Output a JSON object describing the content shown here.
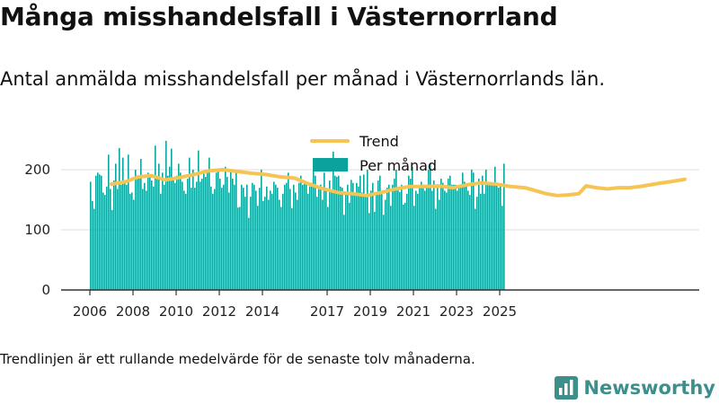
{
  "title": "Många misshandelsfall i Västernorrland",
  "subtitle": "Antal anmälda misshandelsfall per månad i Västernorrlands län.",
  "note": "Trendlinjen är ett rullande medelvärde för de senaste tolv månaderna.",
  "brand": "Newsworthy",
  "colors": {
    "bars": "#0aa29a",
    "trend": "#f5c452",
    "axis": "#333333",
    "grid": "#dddddd",
    "brand": "#3e8f8c"
  },
  "icons": {
    "brand_logo": "bar-chart-logo-icon"
  },
  "chart_data": {
    "type": "bar",
    "x_start": "2006-01",
    "y_ticks": [
      0,
      100,
      200
    ],
    "x_tick_labels": [
      "2006",
      "2008",
      "2010",
      "2012",
      "2014",
      "2017",
      "2019",
      "2021",
      "2023",
      "2025"
    ],
    "ylim": [
      0,
      250
    ],
    "grid": true,
    "legend": {
      "position": "top-center",
      "entries": [
        "Trend",
        "Per månad"
      ]
    },
    "series": [
      {
        "name": "Per månad",
        "type": "bar",
        "values": [
          180,
          148,
          135,
          190,
          195,
          192,
          190,
          162,
          158,
          172,
          225,
          168,
          133,
          182,
          210,
          168,
          236,
          175,
          220,
          182,
          175,
          225,
          160,
          162,
          150,
          200,
          185,
          190,
          218,
          168,
          178,
          165,
          195,
          188,
          182,
          172,
          240,
          190,
          210,
          160,
          195,
          175,
          248,
          190,
          205,
          235,
          185,
          178,
          190,
          210,
          195,
          180,
          165,
          160,
          185,
          220,
          170,
          200,
          170,
          180,
          232,
          180,
          185,
          195,
          188,
          200,
          220,
          172,
          160,
          168,
          195,
          202,
          185,
          170,
          175,
          205,
          188,
          162,
          200,
          185,
          175,
          195,
          137,
          138,
          175,
          170,
          155,
          175,
          120,
          155,
          178,
          175,
          165,
          140,
          170,
          200,
          148,
          155,
          172,
          150,
          165,
          160,
          180,
          175,
          170,
          150,
          138,
          160,
          175,
          178,
          195,
          168,
          136,
          175,
          162,
          150,
          178,
          190,
          175,
          178,
          175,
          160,
          172,
          178,
          200,
          190,
          155,
          170,
          175,
          150,
          195,
          170,
          138,
          182,
          165,
          230,
          190,
          188,
          190,
          172,
          170,
          125,
          160,
          175,
          145,
          183,
          178,
          162,
          178,
          172,
          190,
          162,
          192,
          155,
          200,
          128,
          165,
          178,
          130,
          160,
          182,
          190,
          160,
          125,
          150,
          170,
          175,
          140,
          175,
          185,
          200,
          170,
          163,
          175,
          142,
          145,
          160,
          190,
          185,
          205,
          140,
          165,
          160,
          170,
          180,
          175,
          165,
          175,
          200,
          210,
          165,
          182,
          135,
          170,
          150,
          185,
          178,
          165,
          162,
          185,
          190,
          175,
          175,
          175,
          165,
          170,
          172,
          195,
          180,
          175,
          165,
          158,
          200,
          195,
          135,
          155,
          185,
          160,
          190,
          160,
          200,
          175,
          175,
          175,
          175,
          205,
          175,
          170,
          175,
          140,
          210
        ]
      },
      {
        "name": "Trend",
        "type": "line",
        "points": [
          [
            12,
            176
          ],
          [
            20,
            180
          ],
          [
            27,
            188
          ],
          [
            34,
            190
          ],
          [
            42,
            183
          ],
          [
            50,
            187
          ],
          [
            58,
            192
          ],
          [
            66,
            198
          ],
          [
            74,
            200
          ],
          [
            82,
            197
          ],
          [
            90,
            194
          ],
          [
            98,
            192
          ],
          [
            106,
            188
          ],
          [
            114,
            186
          ],
          [
            122,
            176
          ],
          [
            130,
            168
          ],
          [
            138,
            162
          ],
          [
            146,
            160
          ],
          [
            154,
            157
          ],
          [
            162,
            162
          ],
          [
            170,
            168
          ],
          [
            178,
            172
          ],
          [
            186,
            172
          ],
          [
            194,
            173
          ],
          [
            202,
            170
          ],
          [
            210,
            175
          ],
          [
            218,
            178
          ],
          [
            226,
            176
          ],
          [
            234,
            172
          ],
          [
            242,
            170
          ],
          [
            248,
            165
          ],
          [
            254,
            160
          ],
          [
            260,
            157
          ],
          [
            266,
            158
          ],
          [
            272,
            160
          ],
          [
            276,
            173
          ],
          [
            282,
            170
          ],
          [
            288,
            168
          ],
          [
            294,
            170
          ],
          [
            300,
            170
          ],
          [
            306,
            172
          ],
          [
            312,
            175
          ],
          [
            318,
            178
          ],
          [
            323,
            180
          ],
          [
            327,
            182
          ],
          [
            331,
            184
          ]
        ]
      }
    ]
  }
}
